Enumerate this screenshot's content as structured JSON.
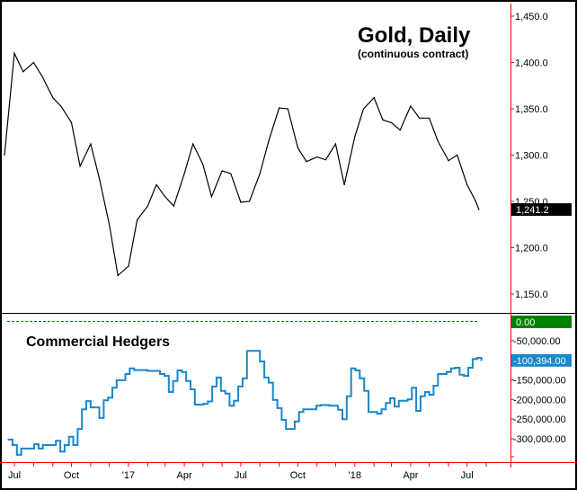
{
  "chart_data": [
    {
      "type": "line",
      "title": "Gold, Daily",
      "subtitle": "(continuous contract)",
      "ylim": [
        1130,
        1460
      ],
      "yticks": [
        "1,450.0",
        "1,400.0",
        "1,350.0",
        "1,300.0",
        "1,250.0",
        "1,200.0",
        "1,150.0"
      ],
      "ytick_values": [
        1450,
        1400,
        1350,
        1300,
        1250,
        1200,
        1150
      ],
      "last_value_label": "1,241.2",
      "last_value_color": "#000000",
      "line_color": "#000000",
      "x": [
        "2016-06-15",
        "2016-07-01",
        "2016-07-15",
        "2016-08-01",
        "2016-08-15",
        "2016-09-01",
        "2016-09-15",
        "2016-10-01",
        "2016-10-15",
        "2016-11-01",
        "2016-11-15",
        "2016-12-01",
        "2016-12-15",
        "2017-01-01",
        "2017-01-15",
        "2017-02-01",
        "2017-02-15",
        "2017-03-01",
        "2017-03-15",
        "2017-04-01",
        "2017-04-15",
        "2017-05-01",
        "2017-05-15",
        "2017-06-01",
        "2017-06-15",
        "2017-07-01",
        "2017-07-15",
        "2017-08-01",
        "2017-08-15",
        "2017-09-01",
        "2017-09-15",
        "2017-10-01",
        "2017-10-15",
        "2017-11-01",
        "2017-11-15",
        "2017-12-01",
        "2017-12-15",
        "2018-01-01",
        "2018-01-15",
        "2018-02-01",
        "2018-02-15",
        "2018-03-01",
        "2018-03-15",
        "2018-04-01",
        "2018-04-15",
        "2018-05-01",
        "2018-05-15",
        "2018-06-01",
        "2018-06-15",
        "2018-07-01",
        "2018-07-15",
        "2018-07-20"
      ],
      "values": [
        1300,
        1410,
        1390,
        1400,
        1385,
        1362,
        1352,
        1335,
        1288,
        1312,
        1275,
        1225,
        1170,
        1180,
        1230,
        1245,
        1268,
        1255,
        1245,
        1280,
        1312,
        1290,
        1255,
        1283,
        1280,
        1249,
        1250,
        1280,
        1315,
        1351,
        1350,
        1308,
        1293,
        1298,
        1295,
        1312,
        1268,
        1320,
        1350,
        1362,
        1338,
        1335,
        1327,
        1353,
        1340,
        1340,
        1315,
        1294,
        1300,
        1268,
        1250,
        1241.2
      ]
    },
    {
      "type": "line",
      "title": "Commercial Hedgers",
      "step": true,
      "ylim": [
        -360000,
        10000
      ],
      "yticks": [
        "0.00",
        "-50,000.00",
        "-150,000.00",
        "-200,000.00",
        "-250,000.00",
        "-300,000.00"
      ],
      "ytick_values": [
        0,
        -50000,
        -150000,
        -200000,
        -250000,
        -300000
      ],
      "zero_label": "0.00",
      "zero_color": "#008000",
      "last_value_label": "-100,394.00",
      "line_color": "#1a87c9",
      "x": [
        "2016-06-21",
        "2016-06-28",
        "2016-07-05",
        "2016-07-12",
        "2016-08-02",
        "2016-08-09",
        "2016-08-16",
        "2016-09-06",
        "2016-09-13",
        "2016-09-20",
        "2016-09-27",
        "2016-10-04",
        "2016-10-11",
        "2016-10-18",
        "2016-10-25",
        "2016-11-01",
        "2016-11-15",
        "2016-11-22",
        "2016-11-29",
        "2016-12-06",
        "2016-12-13",
        "2016-12-27",
        "2017-01-03",
        "2017-01-10",
        "2017-01-31",
        "2017-02-21",
        "2017-02-28",
        "2017-03-07",
        "2017-03-14",
        "2017-03-21",
        "2017-03-28",
        "2017-04-04",
        "2017-04-11",
        "2017-04-18",
        "2017-05-02",
        "2017-05-09",
        "2017-05-16",
        "2017-05-23",
        "2017-05-30",
        "2017-06-06",
        "2017-06-13",
        "2017-06-20",
        "2017-06-27",
        "2017-07-04",
        "2017-07-11",
        "2017-07-25",
        "2017-08-01",
        "2017-08-08",
        "2017-08-15",
        "2017-08-22",
        "2017-08-29",
        "2017-09-05",
        "2017-09-12",
        "2017-09-26",
        "2017-10-03",
        "2017-10-10",
        "2017-10-31",
        "2017-11-07",
        "2017-11-21",
        "2017-12-05",
        "2017-12-12",
        "2017-12-19",
        "2017-12-26",
        "2018-01-02",
        "2018-01-09",
        "2018-01-16",
        "2018-01-23",
        "2018-02-06",
        "2018-02-13",
        "2018-02-20",
        "2018-02-27",
        "2018-03-06",
        "2018-03-13",
        "2018-03-27",
        "2018-04-03",
        "2018-04-10",
        "2018-04-17",
        "2018-04-24",
        "2018-05-01",
        "2018-05-08",
        "2018-05-15",
        "2018-05-29",
        "2018-06-05",
        "2018-06-12",
        "2018-06-19",
        "2018-06-26",
        "2018-07-03",
        "2018-07-10",
        "2018-07-17",
        "2018-07-24"
      ],
      "values": [
        -302000,
        -316000,
        -341000,
        -325000,
        -314000,
        -325000,
        -316000,
        -305000,
        -333000,
        -316000,
        -295000,
        -316000,
        -275000,
        -225000,
        -204000,
        -220000,
        -247000,
        -202000,
        -195000,
        -170000,
        -151000,
        -135000,
        -121000,
        -125000,
        -127000,
        -135000,
        -140000,
        -181000,
        -153000,
        -126000,
        -130000,
        -153000,
        -174000,
        -213000,
        -211000,
        -205000,
        -167000,
        -144000,
        -178000,
        -185000,
        -216000,
        -203000,
        -167000,
        -146000,
        -76000,
        -76000,
        -103000,
        -144000,
        -157000,
        -201000,
        -222000,
        -252000,
        -275000,
        -256000,
        -232000,
        -225000,
        -216000,
        -214000,
        -216000,
        -226000,
        -250000,
        -192000,
        -121000,
        -126000,
        -146000,
        -178000,
        -232000,
        -236000,
        -225000,
        -209000,
        -197000,
        -218000,
        -203000,
        -200000,
        -170000,
        -229000,
        -192000,
        -181000,
        -188000,
        -165000,
        -135000,
        -130000,
        -121000,
        -119000,
        -137000,
        -140000,
        -119000,
        -97000,
        -94000,
        -100394
      ]
    }
  ],
  "xaxis": {
    "labels": [
      "Jul",
      "Oct",
      "'17",
      "Apr",
      "Jul",
      "Oct",
      "'18",
      "Apr",
      "Jul"
    ],
    "label_dates": [
      "2016-07-01",
      "2016-10-01",
      "2017-01-01",
      "2017-04-01",
      "2017-07-01",
      "2017-10-01",
      "2018-01-01",
      "2018-04-01",
      "2018-07-01"
    ]
  },
  "colors": {
    "axis": "#ff0000",
    "frame": "#000000",
    "zero_line": "#008000"
  }
}
